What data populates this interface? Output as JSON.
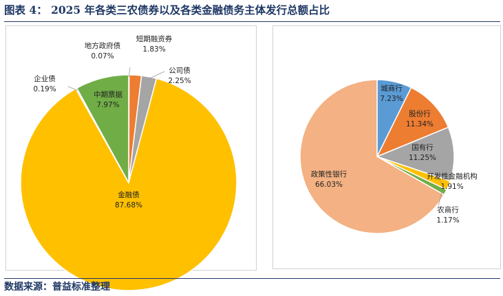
{
  "title": "图表 4：  2025 年各类三农债券以及各类金融债务主体发行总额占比",
  "source": "数据来源：普益标准整理",
  "chart_data": [
    {
      "type": "pie",
      "slices": [
        {
          "name": "地方政府债",
          "value": 0.07,
          "label": "0.07%",
          "color": "#4472c4"
        },
        {
          "name": "短期融资券",
          "value": 1.83,
          "label": "1.83%",
          "color": "#ed7d31"
        },
        {
          "name": "公司债",
          "value": 2.25,
          "label": "2.25%",
          "color": "#a5a5a5"
        },
        {
          "name": "金融债",
          "value": 87.68,
          "label": "87.68%",
          "color": "#ffc000"
        },
        {
          "name": "企业债",
          "value": 0.19,
          "label": "0.19%",
          "color": "#5b9bd5"
        },
        {
          "name": "中期票据",
          "value": 7.97,
          "label": "7.97%",
          "color": "#70ad47"
        }
      ]
    },
    {
      "type": "pie",
      "slices": [
        {
          "name": "城商行",
          "value": 7.23,
          "label": "7.23%",
          "color": "#5b9bd5"
        },
        {
          "name": "股份行",
          "value": 11.34,
          "label": "11.34%",
          "color": "#ed7d31"
        },
        {
          "name": "国有行",
          "value": 11.25,
          "label": "11.25%",
          "color": "#a5a5a5"
        },
        {
          "name": "开发性金融机构",
          "value": 1.91,
          "label": "1.91%",
          "color": "#ffc000"
        },
        {
          "name": "农商行",
          "value": 1.17,
          "label": "1.17%",
          "color": "#70ad47"
        },
        {
          "name": "政策性银行",
          "value": 66.03,
          "label": "66.03%",
          "color": "#f4b183"
        }
      ]
    }
  ]
}
